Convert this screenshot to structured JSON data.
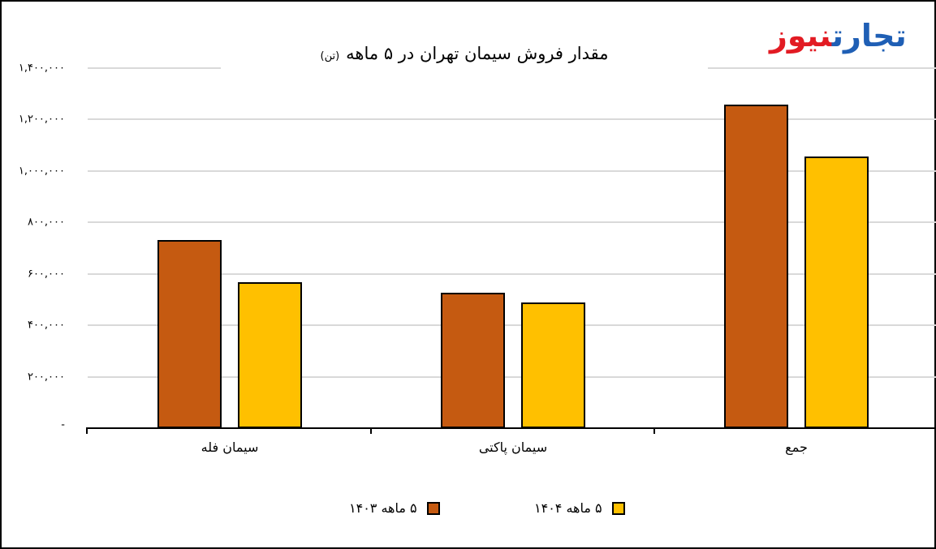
{
  "logo": {
    "part1": "تجارت",
    "part2": "نیوز",
    "color1": "#1f5fb5",
    "color2": "#e21b23"
  },
  "chart_data": {
    "type": "bar",
    "title": "مقدار فروش سیمان تهران در ۵ ماهه",
    "title_unit": "(تن)",
    "xlabel": "",
    "ylabel": "",
    "categories": [
      "سیمان فله",
      "سیمان پاکتی",
      "جمع"
    ],
    "series": [
      {
        "name": "۵ ماهه ۱۴۰۳",
        "color": "#c55a11",
        "values": [
          732000,
          527000,
          1259000
        ]
      },
      {
        "name": "۵ ماهه ۱۴۰۴",
        "color": "#ffc000",
        "values": [
          568000,
          489000,
          1057000
        ]
      }
    ],
    "ylim": [
      0,
      1400000
    ],
    "yticks": [
      0,
      200000,
      400000,
      600000,
      800000,
      1000000,
      1200000,
      1400000
    ],
    "ytick_labels": [
      "-",
      "۲۰۰,۰۰۰",
      "۴۰۰,۰۰۰",
      "۶۰۰,۰۰۰",
      "۸۰۰,۰۰۰",
      "۱,۰۰۰,۰۰۰",
      "۱,۲۰۰,۰۰۰",
      "۱,۴۰۰,۰۰۰"
    ],
    "grid": true,
    "legend_position": "bottom"
  }
}
